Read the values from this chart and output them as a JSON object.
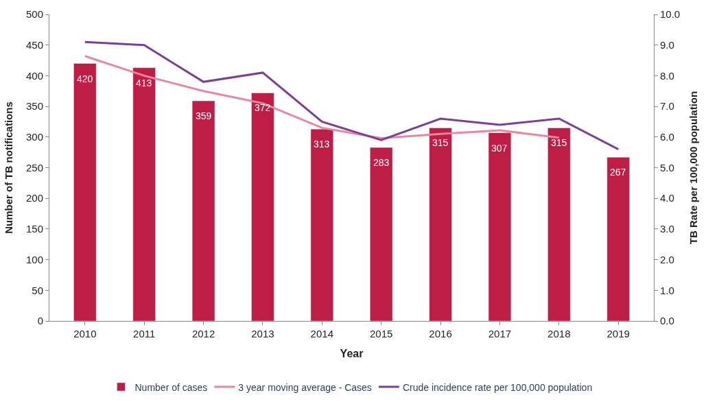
{
  "chart_data": {
    "type": "bar",
    "xlabel": "Year",
    "ylabel": "Number of TB notifications",
    "y2label": "TB Rate per 100,000 population",
    "categories": [
      "2010",
      "2011",
      "2012",
      "2013",
      "2014",
      "2015",
      "2016",
      "2017",
      "2018",
      "2019"
    ],
    "series": [
      {
        "name": "Number of cases",
        "color": "#be1e45",
        "values": [
          420,
          413,
          359,
          372,
          313,
          283,
          315,
          307,
          315,
          267
        ],
        "value_labels": [
          "420",
          "413",
          "359",
          "372",
          "313",
          "283",
          "315",
          "307",
          "315",
          "267"
        ]
      },
      {
        "name": "3 year moving average - Cases",
        "type": "line",
        "color": "#e8879f",
        "values": [
          432,
          400,
          375,
          355,
          315,
          298,
          305,
          311,
          299,
          null
        ]
      },
      {
        "name": "Crude incidence rate per 100,000 population",
        "type": "line",
        "axis": "y2",
        "color": "#7b3f98",
        "values": [
          9.1,
          9.0,
          7.8,
          8.1,
          6.5,
          5.9,
          6.6,
          6.4,
          6.6,
          5.6
        ]
      }
    ],
    "ylim": [
      0,
      500
    ],
    "yticks": [
      0,
      50,
      100,
      150,
      200,
      250,
      300,
      350,
      400,
      450,
      500
    ],
    "y2lim": [
      0,
      10
    ],
    "y2ticks": [
      {
        "value": 0,
        "label": "0.0"
      },
      {
        "value": 1,
        "label": "1.0"
      },
      {
        "value": 2,
        "label": "2.0"
      },
      {
        "value": 3,
        "label": "3.0"
      },
      {
        "value": 4,
        "label": "4.0"
      },
      {
        "value": 5,
        "label": "5.0"
      },
      {
        "value": 6,
        "label": "6.0"
      },
      {
        "value": 7,
        "label": "7.0"
      },
      {
        "value": 8,
        "label": "8.0"
      },
      {
        "value": 9,
        "label": "9.0"
      },
      {
        "value": 10,
        "label": "10.0"
      }
    ],
    "legend": "bottom",
    "marker": "none",
    "line_style": "solid"
  }
}
